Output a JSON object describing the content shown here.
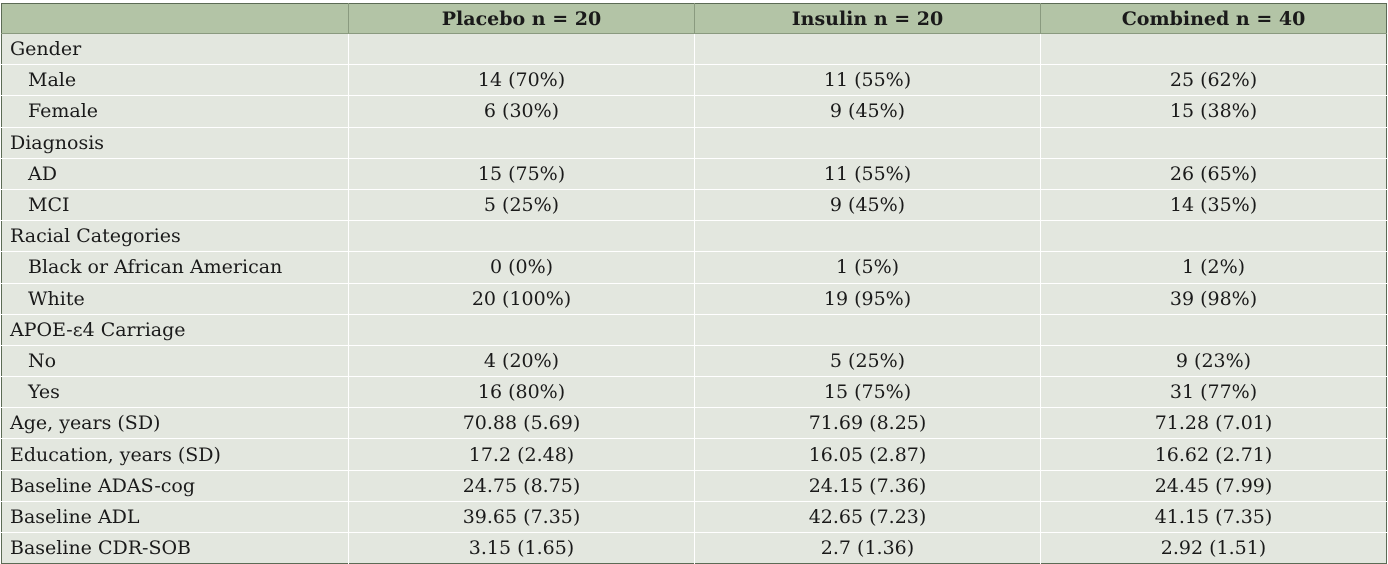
{
  "header": [
    "",
    "Placebo n = 20",
    "Insulin n = 20",
    "Combined n = 40"
  ],
  "rows": [
    {
      "label": "Gender",
      "indent": false,
      "values": [
        "",
        "",
        ""
      ]
    },
    {
      "label": "Male",
      "indent": true,
      "values": [
        "14 (70%)",
        "11 (55%)",
        "25 (62%)"
      ]
    },
    {
      "label": "Female",
      "indent": true,
      "values": [
        "6 (30%)",
        "9 (45%)",
        "15 (38%)"
      ]
    },
    {
      "label": "Diagnosis",
      "indent": false,
      "values": [
        "",
        "",
        ""
      ]
    },
    {
      "label": "AD",
      "indent": true,
      "values": [
        "15 (75%)",
        "11 (55%)",
        "26 (65%)"
      ]
    },
    {
      "label": "MCI",
      "indent": true,
      "values": [
        "5 (25%)",
        "9 (45%)",
        "14 (35%)"
      ]
    },
    {
      "label": "Racial Categories",
      "indent": false,
      "values": [
        "",
        "",
        ""
      ]
    },
    {
      "label": "Black or African American",
      "indent": true,
      "values": [
        "0 (0%)",
        "1 (5%)",
        "1 (2%)"
      ]
    },
    {
      "label": "White",
      "indent": true,
      "values": [
        "20 (100%)",
        "19 (95%)",
        "39 (98%)"
      ]
    },
    {
      "label": "APOE-ε4 Carriage",
      "indent": false,
      "values": [
        "",
        "",
        ""
      ]
    },
    {
      "label": "No",
      "indent": true,
      "values": [
        "4 (20%)",
        "5 (25%)",
        "9 (23%)"
      ]
    },
    {
      "label": "Yes",
      "indent": true,
      "values": [
        "16 (80%)",
        "15 (75%)",
        "31 (77%)"
      ]
    },
    {
      "label": "Age, years (SD)",
      "indent": false,
      "values": [
        "70.88 (5.69)",
        "71.69 (8.25)",
        "71.28 (7.01)"
      ]
    },
    {
      "label": "Education, years (SD)",
      "indent": false,
      "values": [
        "17.2 (2.48)",
        "16.05 (2.87)",
        "16.62 (2.71)"
      ]
    },
    {
      "label": "Baseline ADAS-cog",
      "indent": false,
      "values": [
        "24.75 (8.75)",
        "24.15 (7.36)",
        "24.45 (7.99)"
      ]
    },
    {
      "label": "Baseline ADL",
      "indent": false,
      "values": [
        "39.65 (7.35)",
        "42.65 (7.23)",
        "41.15 (7.35)"
      ]
    },
    {
      "label": "Baseline CDR-SOB",
      "indent": false,
      "values": [
        "3.15 (1.65)",
        "2.7 (1.36)",
        "2.92 (1.51)"
      ]
    }
  ],
  "colors": {
    "header_bg": "#b3c4a6",
    "body_bg": "#e3e7df",
    "border": "#5c6b55"
  }
}
